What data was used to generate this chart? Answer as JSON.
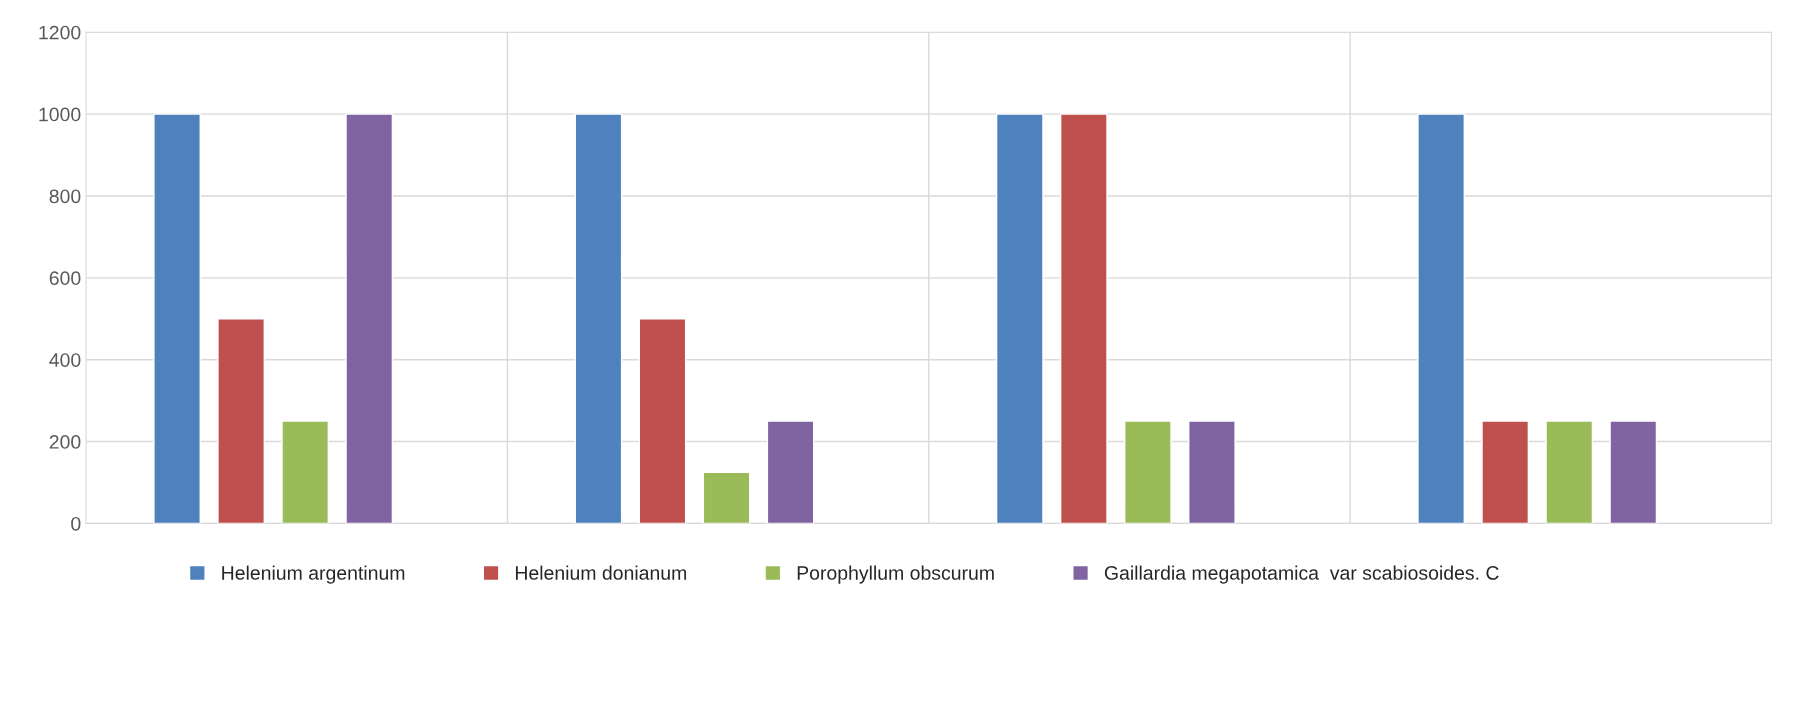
{
  "chart_data": {
    "type": "bar",
    "categories": [
      null,
      null,
      null,
      null
    ],
    "series": [
      {
        "name": "Helenium argentinum",
        "color": "#4f81bd",
        "values": [
          1000,
          1000,
          1000,
          1000
        ]
      },
      {
        "name": "Helenium donianum",
        "color": "#c0504d",
        "values": [
          500,
          500,
          1000,
          250
        ]
      },
      {
        "name": "Porophyllum obscurum",
        "color": "#9bbb59",
        "values": [
          250,
          125,
          250,
          250
        ]
      },
      {
        "name": "Gaillardia megapotamica  var scabiosoides. C",
        "color": "#8064a2",
        "values": [
          1000,
          250,
          250,
          250
        ]
      }
    ],
    "ylim": [
      0,
      1200
    ],
    "yticks": [
      0,
      200,
      400,
      600,
      800,
      1000,
      1200
    ],
    "grid": true,
    "legend": "bottom"
  }
}
